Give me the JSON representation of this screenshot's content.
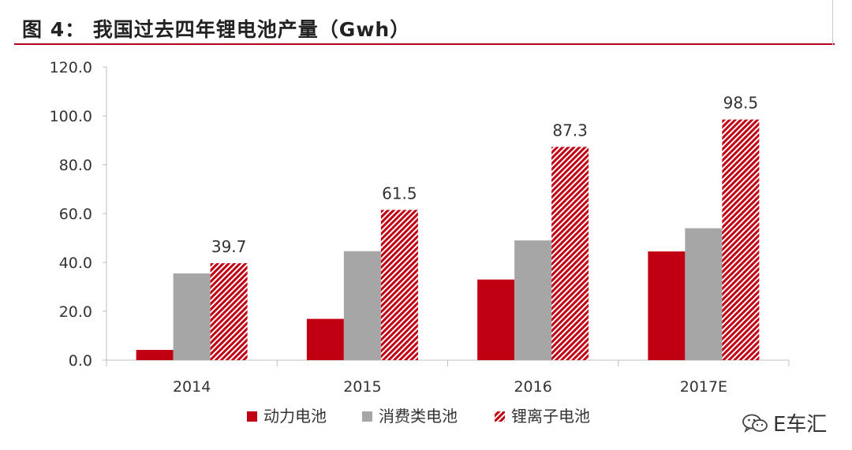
{
  "figure": {
    "title": "图 4： 我国过去四年锂电池产量（Gwh）"
  },
  "chart_data": {
    "type": "bar",
    "title": "我国过去四年锂电池产量（Gwh）",
    "categories": [
      "2014",
      "2015",
      "2016",
      "2017E"
    ],
    "series": [
      {
        "name": "动力电池",
        "values": [
          4.2,
          16.9,
          33.0,
          44.5
        ],
        "color": "#c00012",
        "pattern": "solid"
      },
      {
        "name": "消费类电池",
        "values": [
          35.5,
          44.6,
          49.0,
          54.0
        ],
        "color": "#a6a6a6",
        "pattern": "solid"
      },
      {
        "name": "锂离子电池",
        "values": [
          39.7,
          61.5,
          87.3,
          98.5
        ],
        "color": "#c00012",
        "pattern": "diagonal-hatch"
      }
    ],
    "data_labels": {
      "series": "锂离子电池",
      "labels": [
        "39.7",
        "61.5",
        "87.3",
        "98.5"
      ]
    },
    "yticks": [
      "0.0",
      "20.0",
      "40.0",
      "60.0",
      "80.0",
      "100.0",
      "120.0"
    ],
    "ylim": [
      0,
      120
    ],
    "xlabel": "",
    "ylabel": "",
    "grid": false,
    "legend": "bottom"
  },
  "watermark": {
    "text": "E车汇",
    "icon": "wechat-icon"
  }
}
